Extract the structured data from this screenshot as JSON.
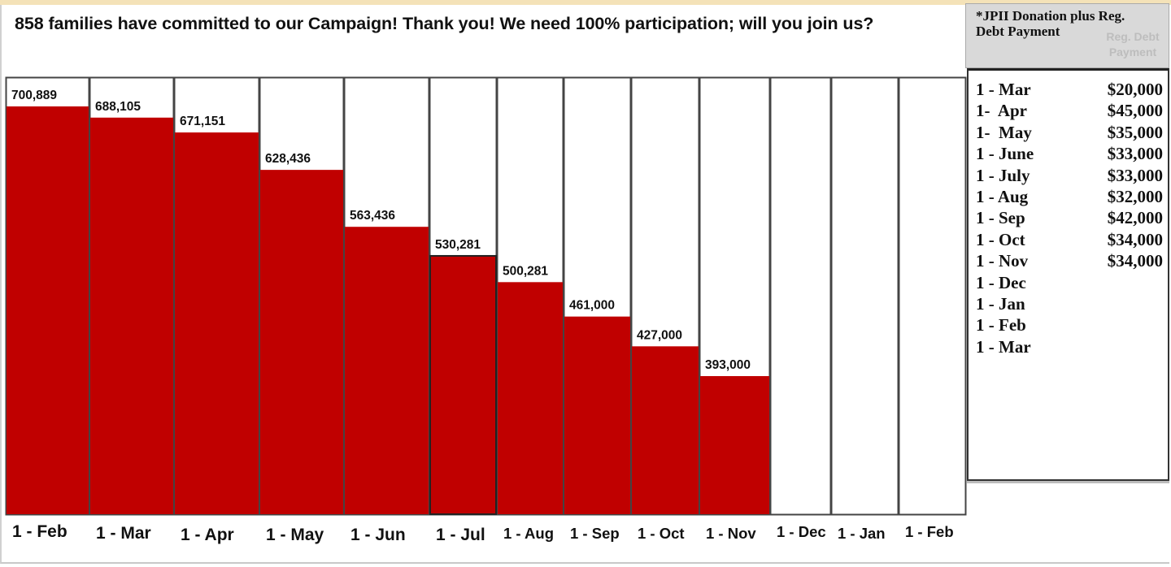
{
  "headline": "858 families have committed to our Campaign! Thank you! We need 100% participation; will you join us?",
  "colors": {
    "bar_fill": "#c00000",
    "column_border": "#444444",
    "header_band": "#d9d9d9",
    "top_band": "#f4e2b8"
  },
  "chart_data": {
    "type": "bar",
    "title": "858 families have committed to our Campaign! Thank you! We need 100% participation; will you join us?",
    "categories": [
      "1 - Feb",
      "1 - Mar",
      "1 - Apr",
      "1 - May",
      "1 - Jun",
      "1 - Jul",
      "1 - Aug",
      "1 - Sep",
      "1 - Oct",
      "1 - Nov",
      "1 - Dec",
      "1 - Jan",
      "1 - Feb"
    ],
    "values": [
      700889,
      688105,
      671151,
      628436,
      563436,
      530281,
      500281,
      461000,
      427000,
      393000,
      null,
      null,
      null
    ],
    "data_labels": [
      "700,889",
      "688,105",
      "671,151",
      "628,436",
      "563,436",
      "530,281",
      "500,281",
      "461,000",
      "427,000",
      "393,000",
      "",
      "",
      ""
    ],
    "xlabel": "",
    "ylabel": "",
    "grid": false,
    "legend": "none"
  },
  "side_panel": {
    "title": "*JPII Donation plus Reg. Debt Payment",
    "ghost_text": "Reg. Debt Payment",
    "schedule": [
      {
        "label": "1 - Mar",
        "amount": "$20,000"
      },
      {
        "label": "1-  Apr",
        "amount": "$45,000"
      },
      {
        "label": "1-  May",
        "amount": "$35,000"
      },
      {
        "label": "1 - June",
        "amount": "$33,000"
      },
      {
        "label": "1 - July",
        "amount": "$33,000"
      },
      {
        "label": "1 - Aug",
        "amount": "$32,000"
      },
      {
        "label": "1 - Sep",
        "amount": "$42,000"
      },
      {
        "label": "1 - Oct",
        "amount": "$34,000"
      },
      {
        "label": "1 - Nov",
        "amount": "$34,000"
      },
      {
        "label": "1 - Dec",
        "amount": ""
      },
      {
        "label": "1 - Jan",
        "amount": ""
      },
      {
        "label": "1 - Feb",
        "amount": ""
      },
      {
        "label": "1 - Mar",
        "amount": ""
      }
    ]
  }
}
